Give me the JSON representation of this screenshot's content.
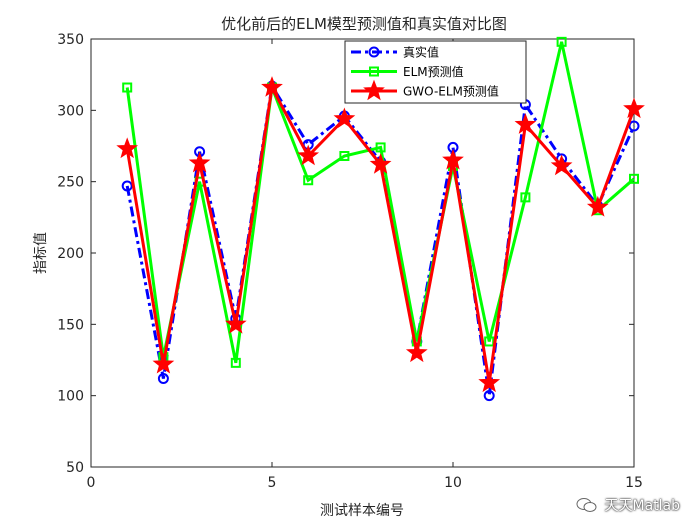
{
  "chart_data": {
    "type": "line",
    "title": "优化前后的ELM模型预测值和真实值对比图",
    "xlabel": "测试样本编号",
    "ylabel": "指标值",
    "xlim": [
      0,
      15
    ],
    "ylim": [
      50,
      350
    ],
    "xticks": [
      0,
      5,
      10,
      15
    ],
    "yticks": [
      50,
      100,
      150,
      200,
      250,
      300,
      350
    ],
    "legend_position": "top-center",
    "grid": false,
    "x": [
      1,
      2,
      3,
      4,
      5,
      6,
      7,
      8,
      9,
      10,
      11,
      12,
      13,
      14,
      15
    ],
    "series": [
      {
        "name": "真实值",
        "color": "#0000ff",
        "style": "dash-dot",
        "marker": "circle",
        "values": [
          247,
          112,
          271,
          154,
          317,
          276,
          296,
          264,
          138,
          274,
          100,
          304,
          266,
          233,
          289
        ]
      },
      {
        "name": "ELM预测值",
        "color": "#00ff00",
        "style": "solid",
        "marker": "square",
        "values": [
          316,
          127,
          250,
          123,
          316,
          251,
          268,
          274,
          138,
          261,
          138,
          239,
          348,
          230,
          252
        ]
      },
      {
        "name": "GWO-ELM预测值",
        "color": "#ff0000",
        "style": "solid",
        "marker": "star",
        "values": [
          273,
          122,
          263,
          150,
          316,
          268,
          294,
          262,
          130,
          265,
          109,
          290,
          261,
          232,
          301
        ]
      }
    ]
  },
  "watermark": {
    "text": "天天Matlab"
  }
}
